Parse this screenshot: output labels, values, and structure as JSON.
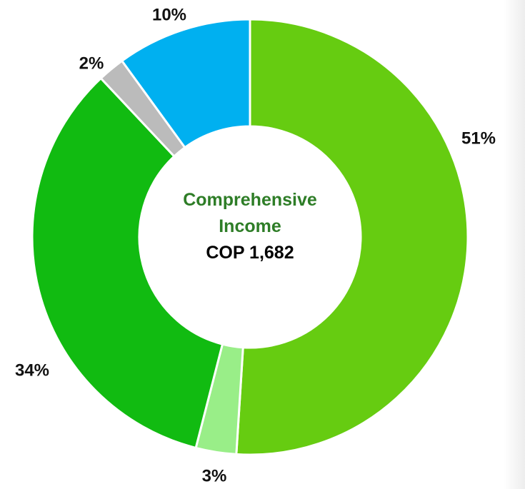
{
  "chart_data": {
    "type": "donut",
    "center_title": "Comprehensive Income",
    "center_value": "COP 1,682",
    "values": [
      51,
      3,
      34,
      2,
      10
    ],
    "value_labels": [
      "51%",
      "3%",
      "34%",
      "2%",
      "10%"
    ],
    "colors": [
      "#66cc11",
      "#99ee88",
      "#11bb11",
      "#bbbbbb",
      "#00b0f0"
    ]
  }
}
